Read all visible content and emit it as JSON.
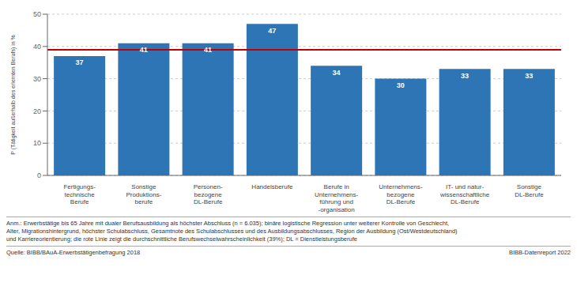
{
  "chart_data": {
    "type": "bar",
    "categories": [
      "Fertigungs-\ntechnische\nBerufe",
      "Sonstige\nProduktions-\nberufe",
      "Personen-\nbezogene\nDL-Berufe",
      "Handelsberufe",
      "Berufe in\nUnternehmens-\nführung und\n-organisation",
      "Unternehmens-\nbezogene\nDL-Berufe",
      "IT- und natur-\nwissenschaftliche\nDL-Berufe",
      "Sonstige\nDL-Berufe"
    ],
    "values": [
      37,
      41,
      41,
      47,
      34,
      30,
      33,
      33
    ],
    "color": "#2e75b6",
    "ylabel": "P (Tätigkeit außerhalb des erlernten Berufs) in %",
    "ylim": [
      0,
      50
    ],
    "yticks": [
      0,
      10,
      20,
      30,
      40,
      50
    ],
    "grid": true,
    "data_labels": true,
    "ref_line": {
      "y": 39,
      "color": "#c00000"
    },
    "notes": [
      "Anm.: Erwerbstätige bis 65 Jahre mit dualer Berufsausbildung als höchster Abschluss (n = 6.035); binäre logistische Regression unter weiterer Kontrolle von Geschlecht,",
      "Alter, Migrationshintergrund, höchster Schulabschluss, Gesamtnote des Schulabschlusses und des Ausbildungsabschlusses, Region der Ausbildung (Ost/Westdeutschland)",
      "und Karriereorientierung; die rote Linie zeigt die durchschnittliche Berufswechselwahrscheinlichkeit (39%); DL = Dienstleistungsberufe"
    ],
    "sources": [
      "Quelle: BIBB/BAuA-Erwerbstätigenbefragung 2018",
      "BIBB-Datenreport 2022"
    ]
  }
}
